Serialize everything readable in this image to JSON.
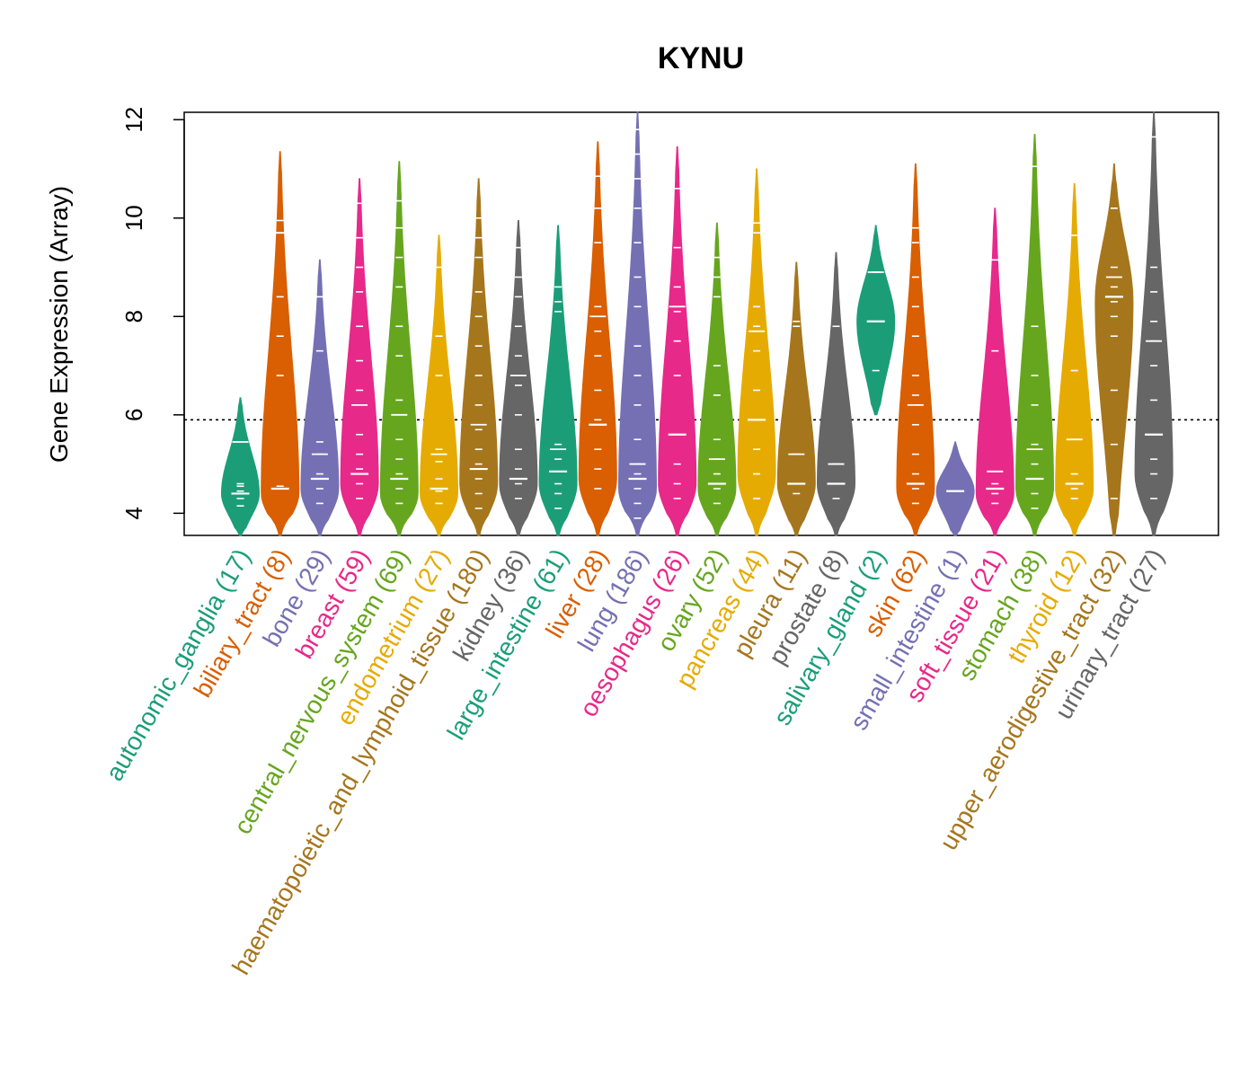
{
  "chart_data": {
    "type": "violin",
    "title": "KYNU",
    "xlabel": "",
    "ylabel": "Gene Expression (Array)",
    "ylim": [
      3.55,
      12.15
    ],
    "yticks": [
      4,
      6,
      8,
      10,
      12
    ],
    "reference_line": 5.9,
    "grid": false,
    "categories": [
      {
        "name": "autonomic_ganglia",
        "count": "(17)",
        "color": "#1B9E77",
        "min": 3.55,
        "max": 6.35,
        "peak": 4.4,
        "median": 4.4,
        "q3": 5.45,
        "points": [
          4.15,
          4.3,
          4.45,
          4.55,
          4.6
        ]
      },
      {
        "name": "biliary_tract",
        "count": "(8)",
        "color": "#D95F02",
        "min": 3.55,
        "max": 11.35,
        "peak": 4.4,
        "median": 4.5,
        "q3": 9.7,
        "points": [
          4.55,
          6.8,
          7.6,
          8.4,
          9.7,
          9.95
        ]
      },
      {
        "name": "bone",
        "count": "(29)",
        "color": "#7570B3",
        "min": 3.55,
        "max": 9.15,
        "peak": 4.5,
        "median": 4.7,
        "q3": 5.2,
        "points": [
          4.2,
          4.5,
          4.8,
          5.2,
          5.45,
          7.3,
          8.4
        ]
      },
      {
        "name": "breast",
        "count": "(59)",
        "color": "#E7298A",
        "min": 3.55,
        "max": 10.8,
        "peak": 4.6,
        "median": 4.8,
        "q3": 6.2,
        "points": [
          4.3,
          4.6,
          4.9,
          5.2,
          5.6,
          6.5,
          7.1,
          7.8,
          8.5,
          9.0,
          9.6,
          10.3
        ]
      },
      {
        "name": "central_nervous_system",
        "count": "(69)",
        "color": "#66A61E",
        "min": 3.55,
        "max": 11.15,
        "peak": 4.4,
        "median": 4.7,
        "q3": 6.0,
        "points": [
          4.2,
          4.5,
          4.8,
          5.1,
          5.5,
          6.3,
          7.2,
          7.8,
          8.6,
          9.2,
          9.8,
          10.35
        ]
      },
      {
        "name": "endometrium",
        "count": "(27)",
        "color": "#E6AB02",
        "min": 3.55,
        "max": 9.65,
        "peak": 4.4,
        "median": 4.5,
        "q3": 5.2,
        "points": [
          4.2,
          4.45,
          4.7,
          5.05,
          5.3,
          6.8,
          7.6,
          9.0
        ]
      },
      {
        "name": "haematopoietic_and_lymphoid_tissue",
        "count": "(180)",
        "color": "#A6761D",
        "min": 3.55,
        "max": 10.8,
        "peak": 4.6,
        "median": 4.9,
        "q3": 5.8,
        "points": [
          4.1,
          4.4,
          4.7,
          5.0,
          5.3,
          5.7,
          6.2,
          6.8,
          7.4,
          8.0,
          8.5,
          9.2,
          9.6,
          10.0
        ]
      },
      {
        "name": "kidney",
        "count": "(36)",
        "color": "#666666",
        "min": 3.55,
        "max": 9.95,
        "peak": 4.6,
        "median": 4.7,
        "q3": 6.8,
        "points": [
          4.3,
          4.6,
          4.9,
          5.3,
          6.0,
          6.6,
          7.2,
          7.8,
          8.4,
          8.8,
          9.4
        ]
      },
      {
        "name": "large_intestine",
        "count": "(61)",
        "color": "#1B9E77",
        "min": 3.55,
        "max": 9.85,
        "peak": 4.6,
        "median": 4.85,
        "q3": 5.3,
        "points": [
          4.1,
          4.4,
          4.6,
          4.85,
          5.1,
          5.4,
          8.1,
          8.3,
          8.6
        ]
      },
      {
        "name": "liver",
        "count": "(28)",
        "color": "#D95F02",
        "min": 3.55,
        "max": 11.55,
        "peak": 4.7,
        "median": 5.8,
        "q3": 8.0,
        "points": [
          4.5,
          4.9,
          5.3,
          5.9,
          6.5,
          7.2,
          7.7,
          8.2,
          9.5,
          10.2,
          10.85
        ]
      },
      {
        "name": "lung",
        "count": "(186)",
        "color": "#7570B3",
        "min": 3.55,
        "max": 12.15,
        "peak": 4.5,
        "median": 4.7,
        "q3": 5.0,
        "points": [
          3.9,
          4.2,
          4.5,
          4.8,
          5.0,
          5.5,
          6.2,
          6.8,
          7.4,
          8.2,
          8.8,
          9.5,
          10.2,
          10.8,
          11.3,
          11.8
        ]
      },
      {
        "name": "oesophagus",
        "count": "(26)",
        "color": "#E7298A",
        "min": 3.55,
        "max": 11.45,
        "peak": 4.6,
        "median": 5.6,
        "q3": 8.2,
        "points": [
          4.3,
          4.6,
          5.0,
          5.6,
          6.8,
          7.5,
          8.1,
          8.6,
          9.4,
          10.6
        ]
      },
      {
        "name": "ovary",
        "count": "(52)",
        "color": "#66A61E",
        "min": 3.55,
        "max": 9.9,
        "peak": 4.5,
        "median": 4.6,
        "q3": 5.1,
        "points": [
          4.2,
          4.5,
          4.8,
          5.1,
          5.5,
          6.4,
          7.0,
          8.4,
          8.8,
          9.2
        ]
      },
      {
        "name": "pancreas",
        "count": "(44)",
        "color": "#E6AB02",
        "min": 3.55,
        "max": 11.0,
        "peak": 4.8,
        "median": 5.9,
        "q3": 7.7,
        "points": [
          4.3,
          4.8,
          5.3,
          5.9,
          6.5,
          7.3,
          7.8,
          8.2,
          9.7,
          9.9
        ]
      },
      {
        "name": "pleura",
        "count": "(11)",
        "color": "#A6761D",
        "min": 3.55,
        "max": 9.1,
        "peak": 4.6,
        "median": 4.6,
        "q3": 5.2,
        "points": [
          4.4,
          4.6,
          5.2,
          7.8,
          7.9
        ]
      },
      {
        "name": "prostate",
        "count": "(8)",
        "color": "#666666",
        "min": 3.55,
        "max": 9.3,
        "peak": 4.6,
        "median": 4.6,
        "q3": 5.0,
        "points": [
          4.3,
          4.6,
          5.0,
          7.8
        ]
      },
      {
        "name": "salivary_gland",
        "count": "(2)",
        "color": "#1B9E77",
        "min": 6.0,
        "max": 9.85,
        "peak": 7.9,
        "median": 7.9,
        "q3": 8.9,
        "points": [
          6.9,
          8.9
        ]
      },
      {
        "name": "skin",
        "count": "(62)",
        "color": "#D95F02",
        "min": 3.55,
        "max": 11.1,
        "peak": 4.5,
        "median": 4.6,
        "q3": 6.2,
        "points": [
          4.2,
          4.5,
          4.8,
          5.2,
          5.8,
          6.4,
          6.8,
          7.6,
          8.2,
          8.8,
          9.5,
          9.8
        ]
      },
      {
        "name": "small_intestine",
        "count": "(1)",
        "color": "#7570B3",
        "min": 3.55,
        "max": 5.45,
        "peak": 4.45,
        "median": 4.45,
        "q3": 4.45,
        "points": [
          4.45
        ]
      },
      {
        "name": "soft_tissue",
        "count": "(21)",
        "color": "#E7298A",
        "min": 3.55,
        "max": 10.2,
        "peak": 4.4,
        "median": 4.5,
        "q3": 4.85,
        "points": [
          4.2,
          4.4,
          4.6,
          4.85,
          7.3,
          9.15
        ]
      },
      {
        "name": "stomach",
        "count": "(38)",
        "color": "#66A61E",
        "min": 3.55,
        "max": 11.7,
        "peak": 4.5,
        "median": 4.7,
        "q3": 5.3,
        "points": [
          4.1,
          4.4,
          4.7,
          5.0,
          5.4,
          6.2,
          6.8,
          7.8,
          11.05
        ]
      },
      {
        "name": "thyroid",
        "count": "(12)",
        "color": "#E6AB02",
        "min": 3.55,
        "max": 10.7,
        "peak": 4.5,
        "median": 4.6,
        "q3": 5.5,
        "points": [
          4.3,
          4.5,
          4.8,
          6.9,
          9.65
        ]
      },
      {
        "name": "upper_aerodigestive_tract",
        "count": "(32)",
        "color": "#A6761D",
        "min": 3.55,
        "max": 11.1,
        "peak": 8.3,
        "median": 8.4,
        "q3": 8.8,
        "points": [
          4.3,
          5.4,
          6.5,
          7.6,
          8.0,
          8.3,
          8.6,
          9.0,
          10.2
        ]
      },
      {
        "name": "urinary_tract",
        "count": "(27)",
        "color": "#666666",
        "min": 3.55,
        "max": 12.15,
        "peak": 4.8,
        "median": 5.6,
        "q3": 7.5,
        "points": [
          4.3,
          4.8,
          5.1,
          5.6,
          6.3,
          7.0,
          7.5,
          7.9,
          8.5,
          9.0,
          11.65
        ]
      }
    ]
  }
}
